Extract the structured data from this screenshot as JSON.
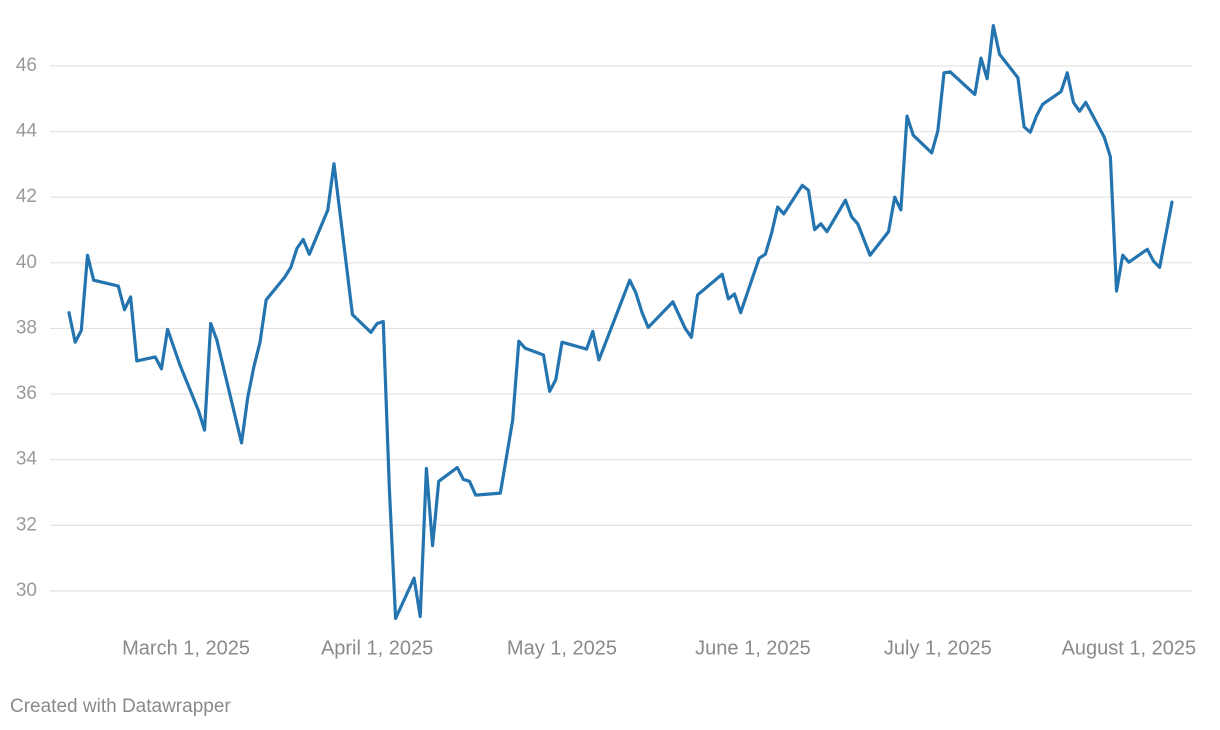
{
  "chart_data": {
    "type": "line",
    "color": "#2474b0",
    "grid": true,
    "credit": "Created with Datawrapper",
    "xlim": [
      "2025-02-10",
      "2025-08-08"
    ],
    "ylim": [
      28.9,
      47.4
    ],
    "yticks": [
      30,
      32,
      34,
      36,
      38,
      40,
      42,
      44,
      46
    ],
    "xticks": [
      {
        "value": "2025-03-01",
        "label": "March 1, 2025"
      },
      {
        "value": "2025-04-01",
        "label": "April 1, 2025"
      },
      {
        "value": "2025-05-01",
        "label": "May 1, 2025"
      },
      {
        "value": "2025-06-01",
        "label": "June 1, 2025"
      },
      {
        "value": "2025-07-01",
        "label": "July 1, 2025"
      },
      {
        "value": "2025-08-01",
        "label": "August 1, 2025"
      }
    ],
    "x": [
      "2025-02-10",
      "2025-02-11",
      "2025-02-12",
      "2025-02-13",
      "2025-02-14",
      "2025-02-18",
      "2025-02-19",
      "2025-02-20",
      "2025-02-21",
      "2025-02-24",
      "2025-02-25",
      "2025-02-26",
      "2025-02-28",
      "2025-03-03",
      "2025-03-04",
      "2025-03-05",
      "2025-03-06",
      "2025-03-10",
      "2025-03-11",
      "2025-03-12",
      "2025-03-13",
      "2025-03-14",
      "2025-03-17",
      "2025-03-18",
      "2025-03-19",
      "2025-03-20",
      "2025-03-21",
      "2025-03-24",
      "2025-03-25",
      "2025-03-28",
      "2025-03-31",
      "2025-04-01",
      "2025-04-02",
      "2025-04-03",
      "2025-04-04",
      "2025-04-07",
      "2025-04-08",
      "2025-04-09",
      "2025-04-10",
      "2025-04-11",
      "2025-04-14",
      "2025-04-15",
      "2025-04-16",
      "2025-04-17",
      "2025-04-21",
      "2025-04-23",
      "2025-04-24",
      "2025-04-25",
      "2025-04-28",
      "2025-04-29",
      "2025-04-30",
      "2025-05-01",
      "2025-05-05",
      "2025-05-06",
      "2025-05-07",
      "2025-05-12",
      "2025-05-13",
      "2025-05-14",
      "2025-05-15",
      "2025-05-19",
      "2025-05-21",
      "2025-05-22",
      "2025-05-23",
      "2025-05-27",
      "2025-05-28",
      "2025-05-29",
      "2025-05-30",
      "2025-06-02",
      "2025-06-03",
      "2025-06-04",
      "2025-06-05",
      "2025-06-06",
      "2025-06-09",
      "2025-06-10",
      "2025-06-11",
      "2025-06-12",
      "2025-06-13",
      "2025-06-16",
      "2025-06-17",
      "2025-06-18",
      "2025-06-20",
      "2025-06-23",
      "2025-06-24",
      "2025-06-25",
      "2025-06-26",
      "2025-06-27",
      "2025-06-30",
      "2025-07-01",
      "2025-07-02",
      "2025-07-03",
      "2025-07-07",
      "2025-07-08",
      "2025-07-09",
      "2025-07-10",
      "2025-07-11",
      "2025-07-14",
      "2025-07-15",
      "2025-07-16",
      "2025-07-17",
      "2025-07-18",
      "2025-07-21",
      "2025-07-22",
      "2025-07-23",
      "2025-07-24",
      "2025-07-25",
      "2025-07-28",
      "2025-07-29",
      "2025-07-30",
      "2025-07-31",
      "2025-08-01",
      "2025-08-04",
      "2025-08-05",
      "2025-08-06",
      "2025-08-08"
    ],
    "values": [
      38.48,
      37.58,
      37.94,
      40.23,
      39.47,
      39.29,
      38.57,
      38.96,
      37.01,
      37.13,
      36.77,
      37.97,
      36.89,
      35.5,
      34.9,
      38.15,
      37.64,
      34.51,
      35.89,
      36.83,
      37.58,
      38.87,
      39.56,
      39.86,
      40.44,
      40.71,
      40.26,
      41.61,
      43.02,
      38.42,
      37.88,
      38.15,
      38.21,
      33.07,
      29.16,
      30.39,
      29.22,
      33.73,
      31.38,
      33.34,
      33.76,
      33.4,
      33.34,
      32.92,
      32.98,
      35.2,
      37.61,
      37.4,
      37.19,
      36.08,
      36.44,
      37.58,
      37.37,
      37.91,
      37.04,
      39.47,
      39.08,
      38.48,
      38.03,
      38.81,
      38.0,
      37.73,
      39.02,
      39.65,
      38.9,
      39.05,
      38.48,
      40.14,
      40.26,
      40.89,
      41.7,
      41.49,
      42.36,
      42.21,
      41.01,
      41.19,
      40.95,
      41.91,
      41.4,
      41.19,
      40.23,
      40.95,
      42.0,
      41.61,
      44.47,
      43.89,
      43.35,
      44.02,
      45.79,
      45.82,
      45.13,
      46.24,
      45.61,
      47.23,
      46.36,
      45.64,
      44.14,
      43.98,
      44.47,
      44.83,
      45.22,
      45.79,
      44.89,
      44.62,
      44.89,
      43.83,
      43.23,
      39.14,
      40.23,
      40.02,
      40.41,
      40.05,
      39.86,
      41.85
    ]
  }
}
